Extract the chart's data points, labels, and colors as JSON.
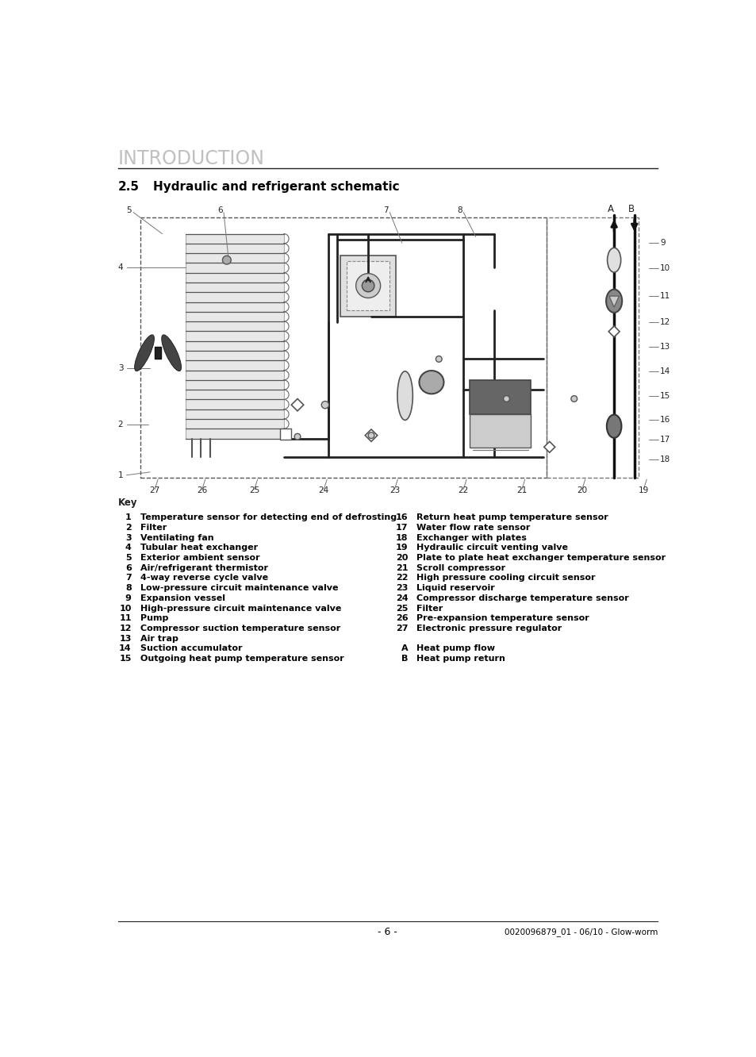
{
  "title": "INTRODUCTION",
  "section_num": "2.5",
  "section_title": "Hydraulic and refrigerant schematic",
  "footer": "0020096879_01 - 06/10 - Glow-worm",
  "page_num": "- 6 -",
  "key_title": "Key",
  "left_key": [
    [
      "1",
      "Temperature sensor for detecting end of defrosting"
    ],
    [
      "2",
      "Filter"
    ],
    [
      "3",
      "Ventilating fan"
    ],
    [
      "4",
      "Tubular heat exchanger"
    ],
    [
      "5",
      "Exterior ambient sensor"
    ],
    [
      "6",
      "Air/refrigerant thermistor"
    ],
    [
      "7",
      "4-way reverse cycle valve"
    ],
    [
      "8",
      "Low-pressure circuit maintenance valve"
    ],
    [
      "9",
      "Expansion vessel"
    ],
    [
      "10",
      "High-pressure circuit maintenance valve"
    ],
    [
      "11",
      "Pump"
    ],
    [
      "12",
      "Compressor suction temperature sensor"
    ],
    [
      "13",
      "Air trap"
    ],
    [
      "14",
      "Suction accumulator"
    ],
    [
      "15",
      "Outgoing heat pump temperature sensor"
    ]
  ],
  "right_key": [
    [
      "16",
      "Return heat pump temperature sensor"
    ],
    [
      "17",
      "Water flow rate sensor"
    ],
    [
      "18",
      "Exchanger with plates"
    ],
    [
      "19",
      "Hydraulic circuit venting valve"
    ],
    [
      "20",
      "Plate to plate heat exchanger temperature sensor"
    ],
    [
      "21",
      "Scroll compressor"
    ],
    [
      "22",
      "High pressure cooling circuit sensor"
    ],
    [
      "23",
      "Liquid reservoir"
    ],
    [
      "24",
      "Compressor discharge temperature sensor"
    ],
    [
      "25",
      "Filter"
    ],
    [
      "26",
      "Pre-expansion temperature sensor"
    ],
    [
      "27",
      "Electronic pressure regulator"
    ]
  ],
  "ab_key": [
    [
      "A",
      "Heat pump flow"
    ],
    [
      "B",
      "Heat pump return"
    ]
  ],
  "bg_color": "#ffffff",
  "title_color": "#c0c0c0",
  "text_color": "#000000"
}
